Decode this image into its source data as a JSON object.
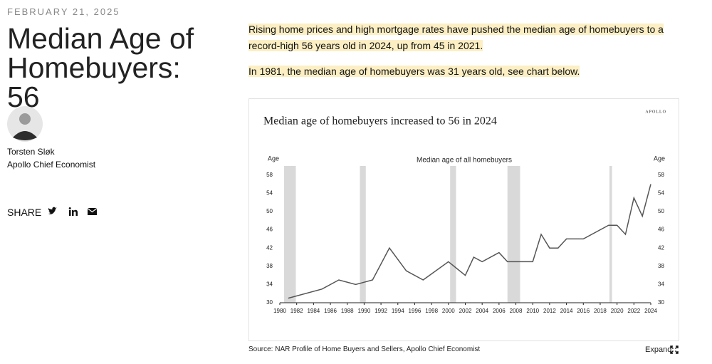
{
  "header": {
    "date": "FEBRUARY 21, 2025",
    "title": "Median Age of Homebuyers: 56"
  },
  "author": {
    "name": "Torsten Sløk",
    "role": "Apollo Chief Economist"
  },
  "share": {
    "label": "SHARE"
  },
  "body": {
    "paragraphs": [
      "Rising home prices and high mortgage rates have pushed the median age of homebuyers to a record-high 56 years old in 2024, up from 45 in 2021.",
      "In 1981, the median age of homebuyers was 31 years old, see chart below."
    ]
  },
  "chart_data": {
    "type": "line",
    "title": "Median age of homebuyers increased to 56 in 2024",
    "brand": "APOLLO",
    "subtitle": "Median age of all homebuyers",
    "y_label": "Age",
    "y2_label": "Age",
    "x": [
      1981,
      1985,
      1987,
      1989,
      1991,
      1993,
      1995,
      1997,
      2000,
      2002,
      2003,
      2004,
      2006,
      2007,
      2010,
      2011,
      2012,
      2013,
      2014,
      2016,
      2019,
      2020,
      2021,
      2022,
      2023,
      2024
    ],
    "series": [
      {
        "name": "Median age of all homebuyers",
        "color": "#555555",
        "values": [
          31,
          33,
          35,
          34,
          35,
          42,
          37,
          35,
          39,
          36,
          40,
          39,
          41,
          39,
          39,
          45,
          42,
          42,
          44,
          44,
          47,
          47,
          45,
          53,
          49,
          56
        ]
      }
    ],
    "recessions": [
      [
        1980.5,
        1981.9
      ],
      [
        1989.5,
        1990.2
      ],
      [
        2000.2,
        2000.9
      ],
      [
        2007.0,
        2008.5
      ],
      [
        2019.1,
        2019.4
      ]
    ],
    "recession_color": "#d9d9d9",
    "xlim": [
      1980,
      2024
    ],
    "xticks": [
      1980,
      1982,
      1984,
      1986,
      1988,
      1990,
      1992,
      1994,
      1996,
      1998,
      2000,
      2002,
      2004,
      2006,
      2008,
      2010,
      2012,
      2014,
      2016,
      2018,
      2020,
      2022,
      2024
    ],
    "ylim": [
      30,
      60
    ],
    "yticks": [
      30,
      34,
      38,
      42,
      46,
      50,
      54,
      58
    ],
    "y2lim": [
      30,
      60
    ],
    "y2ticks": [
      30,
      34,
      38,
      42,
      46,
      50,
      54,
      58
    ],
    "source": "Source: NAR Profile of Home Buyers and Sellers, Apollo Chief Economist"
  },
  "expand": {
    "label": "Expand"
  }
}
